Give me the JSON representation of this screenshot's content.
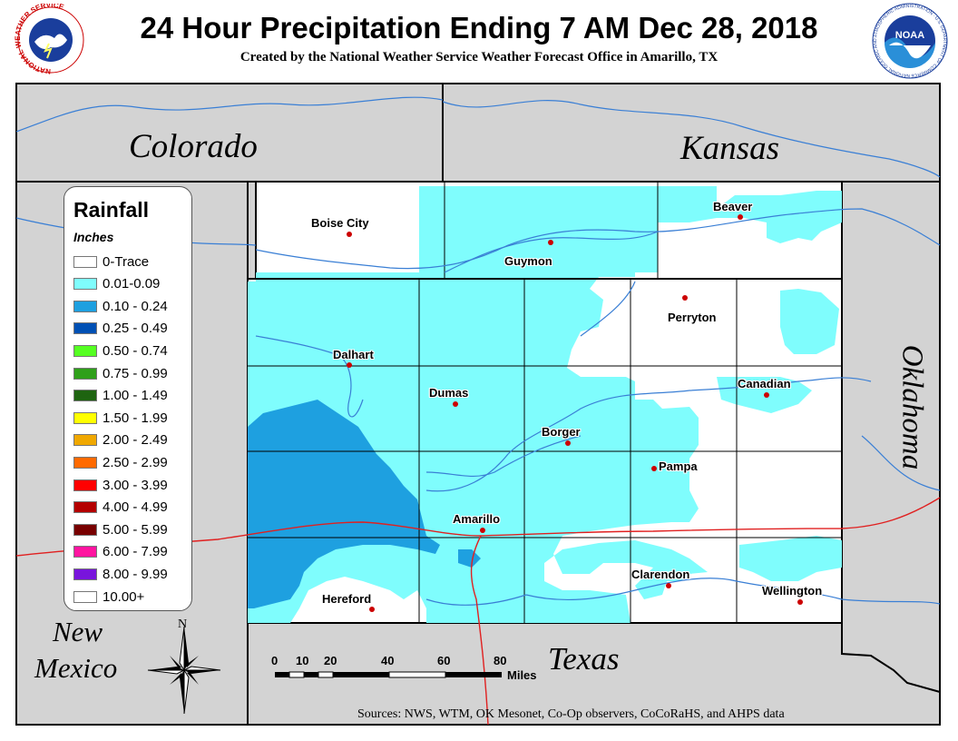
{
  "header": {
    "title": "24 Hour Precipitation Ending 7 AM Dec 28, 2018",
    "subtitle": "Created by the National Weather Service Weather Forecast Office in Amarillo, TX"
  },
  "logos": {
    "nws_ring_text": "NATIONAL WEATHER SERVICE",
    "noaa_text": "NOAA",
    "noaa_ring_text": "NATIONAL OCEANIC AND ATMOSPHERIC ADMINISTRATION · U.S. DEPARTMENT OF COMMERCE"
  },
  "map_labels": {
    "colorado": "Colorado",
    "kansas": "Kansas",
    "oklahoma": "Oklahoma",
    "new_mexico_1": "New",
    "new_mexico_2": "Mexico",
    "texas": "Texas"
  },
  "cities": {
    "boise_city": "Boise City",
    "guymon": "Guymon",
    "beaver": "Beaver",
    "perryton": "Perryton",
    "dalhart": "Dalhart",
    "dumas": "Dumas",
    "canadian": "Canadian",
    "borger": "Borger",
    "pampa": "Pampa",
    "amarillo": "Amarillo",
    "clarendon": "Clarendon",
    "hereford": "Hereford",
    "wellington": "Wellington"
  },
  "legend": {
    "title": "Rainfall",
    "units": "Inches",
    "items": [
      {
        "label": "0-Trace",
        "color": "#ffffff"
      },
      {
        "label": "0.01-0.09",
        "color": "#7ffdfd"
      },
      {
        "label": "0.10 - 0.24",
        "color": "#1ea0e0"
      },
      {
        "label": "0.25 - 0.49",
        "color": "#0050b4"
      },
      {
        "label": "0.50 - 0.74",
        "color": "#55ff22"
      },
      {
        "label": "0.75 - 0.99",
        "color": "#2fa01a"
      },
      {
        "label": "1.00 - 1.49",
        "color": "#1e6410"
      },
      {
        "label": "1.50 - 1.99",
        "color": "#ffff00"
      },
      {
        "label": "2.00 - 2.49",
        "color": "#f0a800"
      },
      {
        "label": "2.50 - 2.99",
        "color": "#ff6a00"
      },
      {
        "label": "3.00 - 3.99",
        "color": "#ff0000"
      },
      {
        "label": "4.00 - 4.99",
        "color": "#b40000"
      },
      {
        "label": "5.00 - 5.99",
        "color": "#780000"
      },
      {
        "label": "6.00 - 7.99",
        "color": "#ff14a0"
      },
      {
        "label": "8.00 - 9.99",
        "color": "#7814dc"
      },
      {
        "label": "10.00+",
        "color": "#ffffff"
      }
    ]
  },
  "scale_bar": {
    "ticks": [
      "0",
      "10",
      "20",
      "40",
      "60",
      "80"
    ],
    "units": "Miles"
  },
  "compass": {
    "north_label": "N"
  },
  "sources": "Sources:  NWS, WTM, OK Mesonet, Co-Op observers, CoCoRaHS, and AHPS data",
  "colors": {
    "background_gray": "#d3d3d3",
    "county_fill_white": "#ffffff",
    "light_cyan": "#7ffdfd",
    "medium_blue": "#1ea0e0",
    "river_blue": "#3a7fd5",
    "highway_red": "#e02020",
    "city_dot": "#cc0000"
  }
}
